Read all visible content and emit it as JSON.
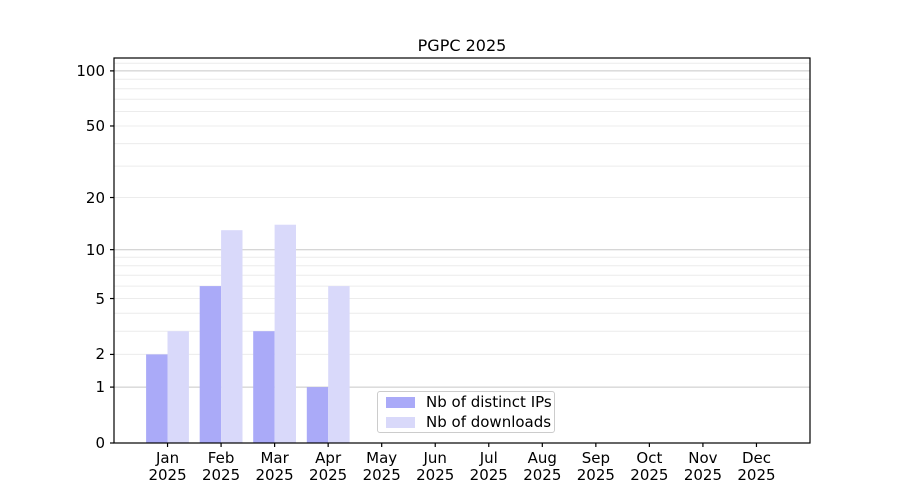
{
  "chart_data": {
    "type": "bar",
    "title": "PGPC 2025",
    "categories": [
      "Jan\n2025",
      "Feb\n2025",
      "Mar\n2025",
      "Apr\n2025",
      "May\n2025",
      "Jun\n2025",
      "Jul\n2025",
      "Aug\n2025",
      "Sep\n2025",
      "Oct\n2025",
      "Nov\n2025",
      "Dec\n2025"
    ],
    "series": [
      {
        "name": "Nb of distinct IPs",
        "color": "#aaaaf8",
        "values": [
          2,
          6,
          3,
          1,
          0,
          0,
          0,
          0,
          0,
          0,
          0,
          0
        ]
      },
      {
        "name": "Nb of downloads",
        "color": "#d9d9fa",
        "values": [
          3,
          13,
          14,
          6,
          0,
          0,
          0,
          0,
          0,
          0,
          0,
          0
        ]
      }
    ],
    "xlabel": "",
    "ylabel": "",
    "yscale": "log1p",
    "yticks": [
      0,
      1,
      2,
      5,
      10,
      20,
      50,
      100
    ],
    "ylim": [
      0,
      117.5
    ],
    "grid": "horizontal major and minor gridlines",
    "legend_position": "lower center inside plot"
  },
  "colors": {
    "major_gridline": "#c8c8c8",
    "minor_gridline": "#ececec",
    "spine": "#000000",
    "background": "#ffffff"
  }
}
